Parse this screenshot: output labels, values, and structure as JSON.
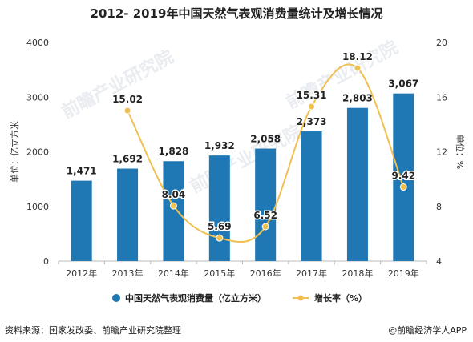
{
  "title": "2012- 2019年中国天然气表观消费量统计及增长情况",
  "source": "资料来源：国家发改委、前瞻产业研究院整理",
  "brand": "@前瞻经济学人APP",
  "watermark": "前瞻产业研究院",
  "chart_data": {
    "type": "bar",
    "title": "2012- 2019年中国天然气表观消费量统计及增长情况",
    "categories": [
      "2012年",
      "2013年",
      "2014年",
      "2015年",
      "2016年",
      "2017年",
      "2018年",
      "2019年"
    ],
    "ylabel_left": "单位：亿立方米",
    "ylabel_right": "单位：%",
    "ylim_left": [
      0,
      4000
    ],
    "yticks_left": [
      "0",
      "1000",
      "2000",
      "3000",
      "4000"
    ],
    "ylim_right": [
      4,
      20
    ],
    "yticks_right": [
      "4",
      "8",
      "12",
      "16",
      "20"
    ],
    "legend_position": "bottom",
    "series": [
      {
        "name": "中国天然气表观消费量（亿立方米）",
        "type": "bar",
        "axis": "left",
        "color": "#1f77b4",
        "values": [
          1471,
          1692,
          1828,
          1932,
          2058,
          2373,
          2803,
          3067
        ],
        "labels": [
          "1,471",
          "1,692",
          "1,828",
          "1,932",
          "2,058",
          "2,373",
          "2,803",
          "3,067"
        ]
      },
      {
        "name": "增长率（%）",
        "type": "line",
        "axis": "right",
        "color": "#f0c050",
        "values": [
          null,
          15.02,
          8.04,
          5.69,
          6.52,
          15.31,
          18.12,
          9.42
        ],
        "labels": [
          "",
          "15.02",
          "8.04",
          "5.69",
          "6.52",
          "15.31",
          "18.12",
          "9.42"
        ]
      }
    ]
  }
}
